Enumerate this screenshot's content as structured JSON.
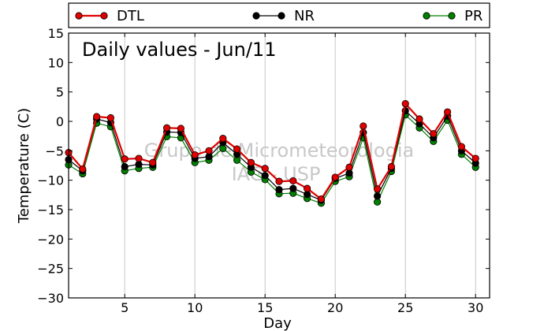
{
  "chart_data": {
    "type": "line",
    "title": "Daily values - Jun/11",
    "xlabel": "Day",
    "ylabel": "Temperature (C)",
    "xlim": [
      1,
      31
    ],
    "ylim": [
      -30,
      15
    ],
    "xticks": [
      5,
      10,
      15,
      20,
      25,
      30
    ],
    "yticks": [
      15,
      10,
      5,
      0,
      -5,
      -10,
      -15,
      -20,
      -25,
      -30
    ],
    "grid": "vertical",
    "legend": "top, outside plot",
    "watermark": [
      "Grupo de Micrometeorologia",
      "IAG - USP"
    ],
    "x": [
      1,
      2,
      3,
      4,
      5,
      6,
      7,
      8,
      9,
      10,
      11,
      12,
      13,
      14,
      15,
      16,
      17,
      18,
      19,
      20,
      21,
      22,
      23,
      24,
      25,
      26,
      27,
      28,
      29,
      30
    ],
    "series": [
      {
        "name": "DTL",
        "color": "#e00000",
        "values": [
          -5.3,
          -8.1,
          0.8,
          0.6,
          -6.4,
          -6.3,
          -7.0,
          -1.1,
          -1.2,
          -5.7,
          -5.0,
          -2.9,
          -4.7,
          -7.0,
          -8.0,
          -10.2,
          -10.1,
          -11.4,
          -13.2,
          -9.5,
          -7.8,
          -0.8,
          -11.5,
          -7.7,
          3.0,
          0.4,
          -2.1,
          1.6,
          -4.3,
          -6.3
        ]
      },
      {
        "name": "NR",
        "color": "#000000",
        "values": [
          -6.5,
          -8.4,
          0.4,
          -0.2,
          -7.7,
          -7.3,
          -7.4,
          -1.8,
          -1.9,
          -6.3,
          -6.0,
          -3.6,
          -5.6,
          -7.8,
          -9.2,
          -11.6,
          -11.4,
          -12.4,
          -13.4,
          -9.7,
          -8.8,
          -1.9,
          -12.7,
          -8.0,
          1.8,
          -0.4,
          -2.8,
          0.9,
          -5.0,
          -7.1
        ]
      },
      {
        "name": "PR",
        "color": "#008000",
        "values": [
          -7.4,
          -8.9,
          -0.3,
          -0.9,
          -8.4,
          -8.0,
          -7.8,
          -2.6,
          -2.8,
          -7.0,
          -6.6,
          -4.6,
          -6.6,
          -8.6,
          -9.9,
          -12.3,
          -12.2,
          -13.1,
          -13.9,
          -10.2,
          -9.4,
          -2.8,
          -13.7,
          -8.5,
          1.1,
          -1.1,
          -3.4,
          0.2,
          -5.6,
          -7.8
        ]
      }
    ]
  }
}
